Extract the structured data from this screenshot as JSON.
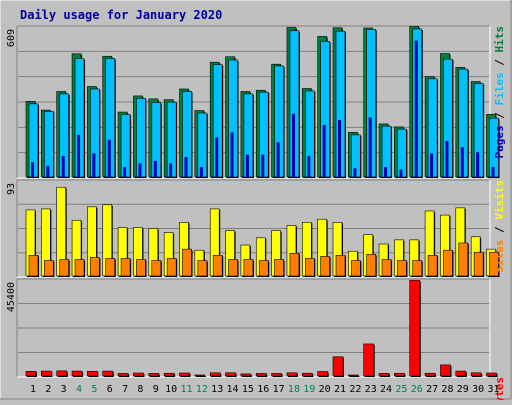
{
  "chart_data": [
    {
      "type": "bar",
      "title": "Daily usage for January 2020",
      "categories": [
        "1",
        "2",
        "3",
        "4",
        "5",
        "6",
        "7",
        "8",
        "9",
        "10",
        "11",
        "12",
        "13",
        "14",
        "15",
        "16",
        "17",
        "18",
        "19",
        "20",
        "21",
        "22",
        "23",
        "24",
        "25",
        "26",
        "27",
        "28",
        "29",
        "30",
        "31"
      ],
      "weekend_days": [
        "4",
        "5",
        "11",
        "12",
        "18",
        "19",
        "25",
        "26"
      ],
      "ylim": [
        0,
        609
      ],
      "top_tick_label": "609",
      "legend": [
        "Pages",
        "Files",
        "Hits"
      ],
      "series": [
        {
          "name": "Hits",
          "color": "#008040",
          "values": [
            305,
            270,
            345,
            497,
            365,
            487,
            262,
            327,
            315,
            312,
            355,
            268,
            463,
            485,
            345,
            350,
            455,
            603,
            357,
            567,
            602,
            180,
            601,
            214,
            202,
            607,
            405,
            498,
            442,
            385,
            253
          ]
        },
        {
          "name": "Files",
          "color": "#00c0ff",
          "values": [
            295,
            265,
            335,
            477,
            355,
            478,
            252,
            317,
            300,
            302,
            345,
            258,
            453,
            472,
            335,
            342,
            448,
            590,
            347,
            547,
            588,
            170,
            595,
            205,
            193,
            597,
            396,
            475,
            435,
            377,
            237
          ]
        },
        {
          "name": "Pages",
          "color": "#0000c0",
          "values": [
            60,
            45,
            85,
            170,
            95,
            150,
            40,
            55,
            65,
            55,
            80,
            40,
            160,
            180,
            90,
            90,
            140,
            255,
            85,
            210,
            230,
            35,
            240,
            40,
            30,
            550,
            95,
            145,
            120,
            100,
            40
          ]
        }
      ]
    },
    {
      "type": "bar",
      "ylim": [
        0,
        93
      ],
      "top_tick_label": "93",
      "legend": [
        "Sites",
        "Visits"
      ],
      "series": [
        {
          "name": "Visits",
          "color": "#ffff00",
          "values": [
            64,
            65,
            86,
            54,
            67,
            69,
            47,
            47,
            46,
            42,
            52,
            25,
            65,
            44,
            30,
            37,
            44,
            49,
            52,
            55,
            52,
            24,
            40,
            31,
            35,
            35,
            63,
            59,
            66,
            38,
            26
          ]
        },
        {
          "name": "Sites",
          "color": "#ff8000",
          "values": [
            20,
            15,
            16,
            16,
            18,
            17,
            17,
            16,
            15,
            17,
            26,
            15,
            20,
            16,
            16,
            15,
            16,
            22,
            17,
            19,
            20,
            15,
            21,
            16,
            15,
            15,
            20,
            25,
            32,
            23,
            23
          ]
        }
      ]
    },
    {
      "type": "bar",
      "ylim": [
        0,
        45400
      ],
      "top_tick_label": "45400",
      "legend": [
        "KBytes"
      ],
      "series": [
        {
          "name": "KBytes",
          "color": "#ff0000",
          "values": [
            2200,
            2300,
            2400,
            2300,
            2200,
            2300,
            1200,
            1400,
            1200,
            1300,
            1400,
            400,
            1500,
            1500,
            1000,
            1200,
            1200,
            1500,
            1300,
            2100,
            9000,
            300,
            15000,
            1200,
            1300,
            44800,
            1300,
            5200,
            2300,
            1500,
            1400
          ]
        }
      ]
    }
  ]
}
